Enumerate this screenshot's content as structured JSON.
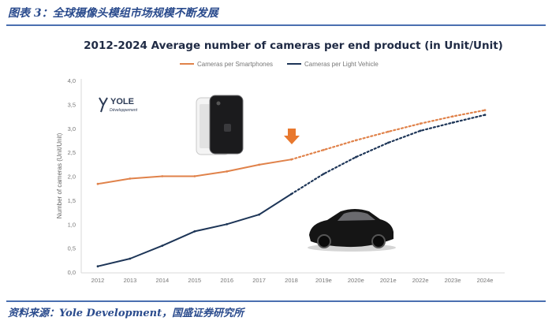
{
  "figure_caption": "图表 3：全球摄像头模组市场规模不断发展",
  "source_note": "资料来源：Yole Development，国盛证券研究所",
  "logo": {
    "brand": "YOLE",
    "sub": "Développement"
  },
  "chart_data": {
    "type": "line",
    "title": "2012-2024 Average number of cameras per end product (in Unit/Unit)",
    "xlabel": "",
    "ylabel": "Number of cameras (Unit/Unit)",
    "ylim": [
      0,
      4
    ],
    "yticks": [
      "0,0",
      "0,5",
      "1,0",
      "1,5",
      "2,0",
      "2,5",
      "3,0",
      "3,5",
      "4,0"
    ],
    "categories": [
      "2012",
      "2013",
      "2014",
      "2015",
      "2016",
      "2017",
      "2018",
      "2019e",
      "2020e",
      "2021e",
      "2022e",
      "2023e",
      "2024e"
    ],
    "forecast_start_index": 6,
    "legend_position": "top",
    "series": [
      {
        "name": "Cameras per Smartphones",
        "color": "#e0824a",
        "values": [
          1.84,
          1.95,
          2.0,
          2.0,
          2.1,
          2.24,
          2.35,
          2.55,
          2.75,
          2.93,
          3.1,
          3.25,
          3.38
        ]
      },
      {
        "name": "Cameras per Light Vehicle",
        "color": "#1d3557",
        "values": [
          0.12,
          0.28,
          0.55,
          0.85,
          1.0,
          1.2,
          1.63,
          2.05,
          2.4,
          2.7,
          2.95,
          3.12,
          3.28
        ]
      }
    ]
  }
}
